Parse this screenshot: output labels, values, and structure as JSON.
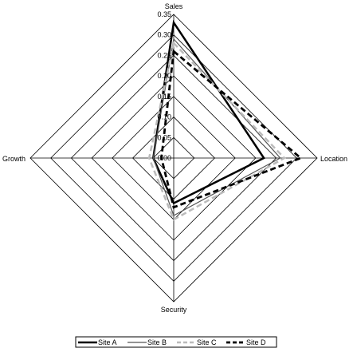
{
  "chart_data": {
    "type": "radar",
    "axes": [
      "Sales",
      "Location",
      "Security",
      "Growth"
    ],
    "r_ticks": [
      "0.00",
      "0.05",
      "0.10",
      "0.15",
      "0.20",
      "0.25",
      "0.30",
      "0.35"
    ],
    "r_range": [
      0,
      0.35
    ],
    "grid": true,
    "legend_position": "bottom",
    "series": [
      {
        "name": "Site A",
        "values": [
          0.33,
          0.22,
          0.11,
          0.05
        ],
        "style": "solid-thick",
        "color": "#000000"
      },
      {
        "name": "Site B",
        "values": [
          0.29,
          0.26,
          0.14,
          0.05
        ],
        "style": "solid-thin",
        "color": "#555555"
      },
      {
        "name": "Site C",
        "values": [
          0.28,
          0.27,
          0.15,
          0.06
        ],
        "style": "dashed-light",
        "color": "#bbbbbb"
      },
      {
        "name": "Site D",
        "values": [
          0.26,
          0.31,
          0.12,
          0.03
        ],
        "style": "dashed-thick",
        "color": "#000000"
      }
    ]
  }
}
